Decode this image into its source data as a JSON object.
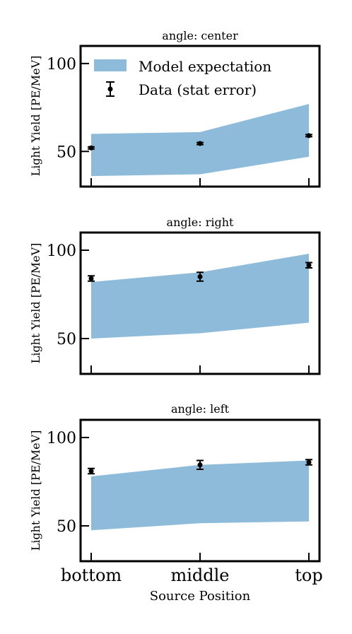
{
  "chart_data": {
    "type": "line",
    "xlabel": "Source Position",
    "ylabel": "Light Yield [PE/MeV]",
    "categories": [
      "bottom",
      "middle",
      "top"
    ],
    "ylim": [
      30,
      110
    ],
    "yticks": [
      50,
      100
    ],
    "legend": {
      "placement": "top-left",
      "entries": [
        "Model expectation",
        "Data (stat error)"
      ]
    },
    "colors": {
      "band": "#8fbbdb",
      "data": "#000000"
    },
    "panels": [
      {
        "title": "angle: center",
        "model_lower": [
          36,
          37,
          47
        ],
        "model_upper": [
          60,
          61,
          77
        ],
        "data": [
          52,
          54.5,
          59
        ],
        "data_err": [
          0.6,
          0.6,
          0.6
        ]
      },
      {
        "title": "angle: right",
        "model_lower": [
          50,
          53,
          59
        ],
        "model_upper": [
          82,
          87.5,
          98
        ],
        "data": [
          84,
          85,
          91.5
        ],
        "data_err": [
          1.5,
          2.5,
          1.5
        ]
      },
      {
        "title": "angle: left",
        "model_lower": [
          47.5,
          51.5,
          52.5
        ],
        "model_upper": [
          78,
          84.5,
          87
        ],
        "data": [
          81,
          84.5,
          86
        ],
        "data_err": [
          1.5,
          2.5,
          1.5
        ]
      }
    ]
  }
}
